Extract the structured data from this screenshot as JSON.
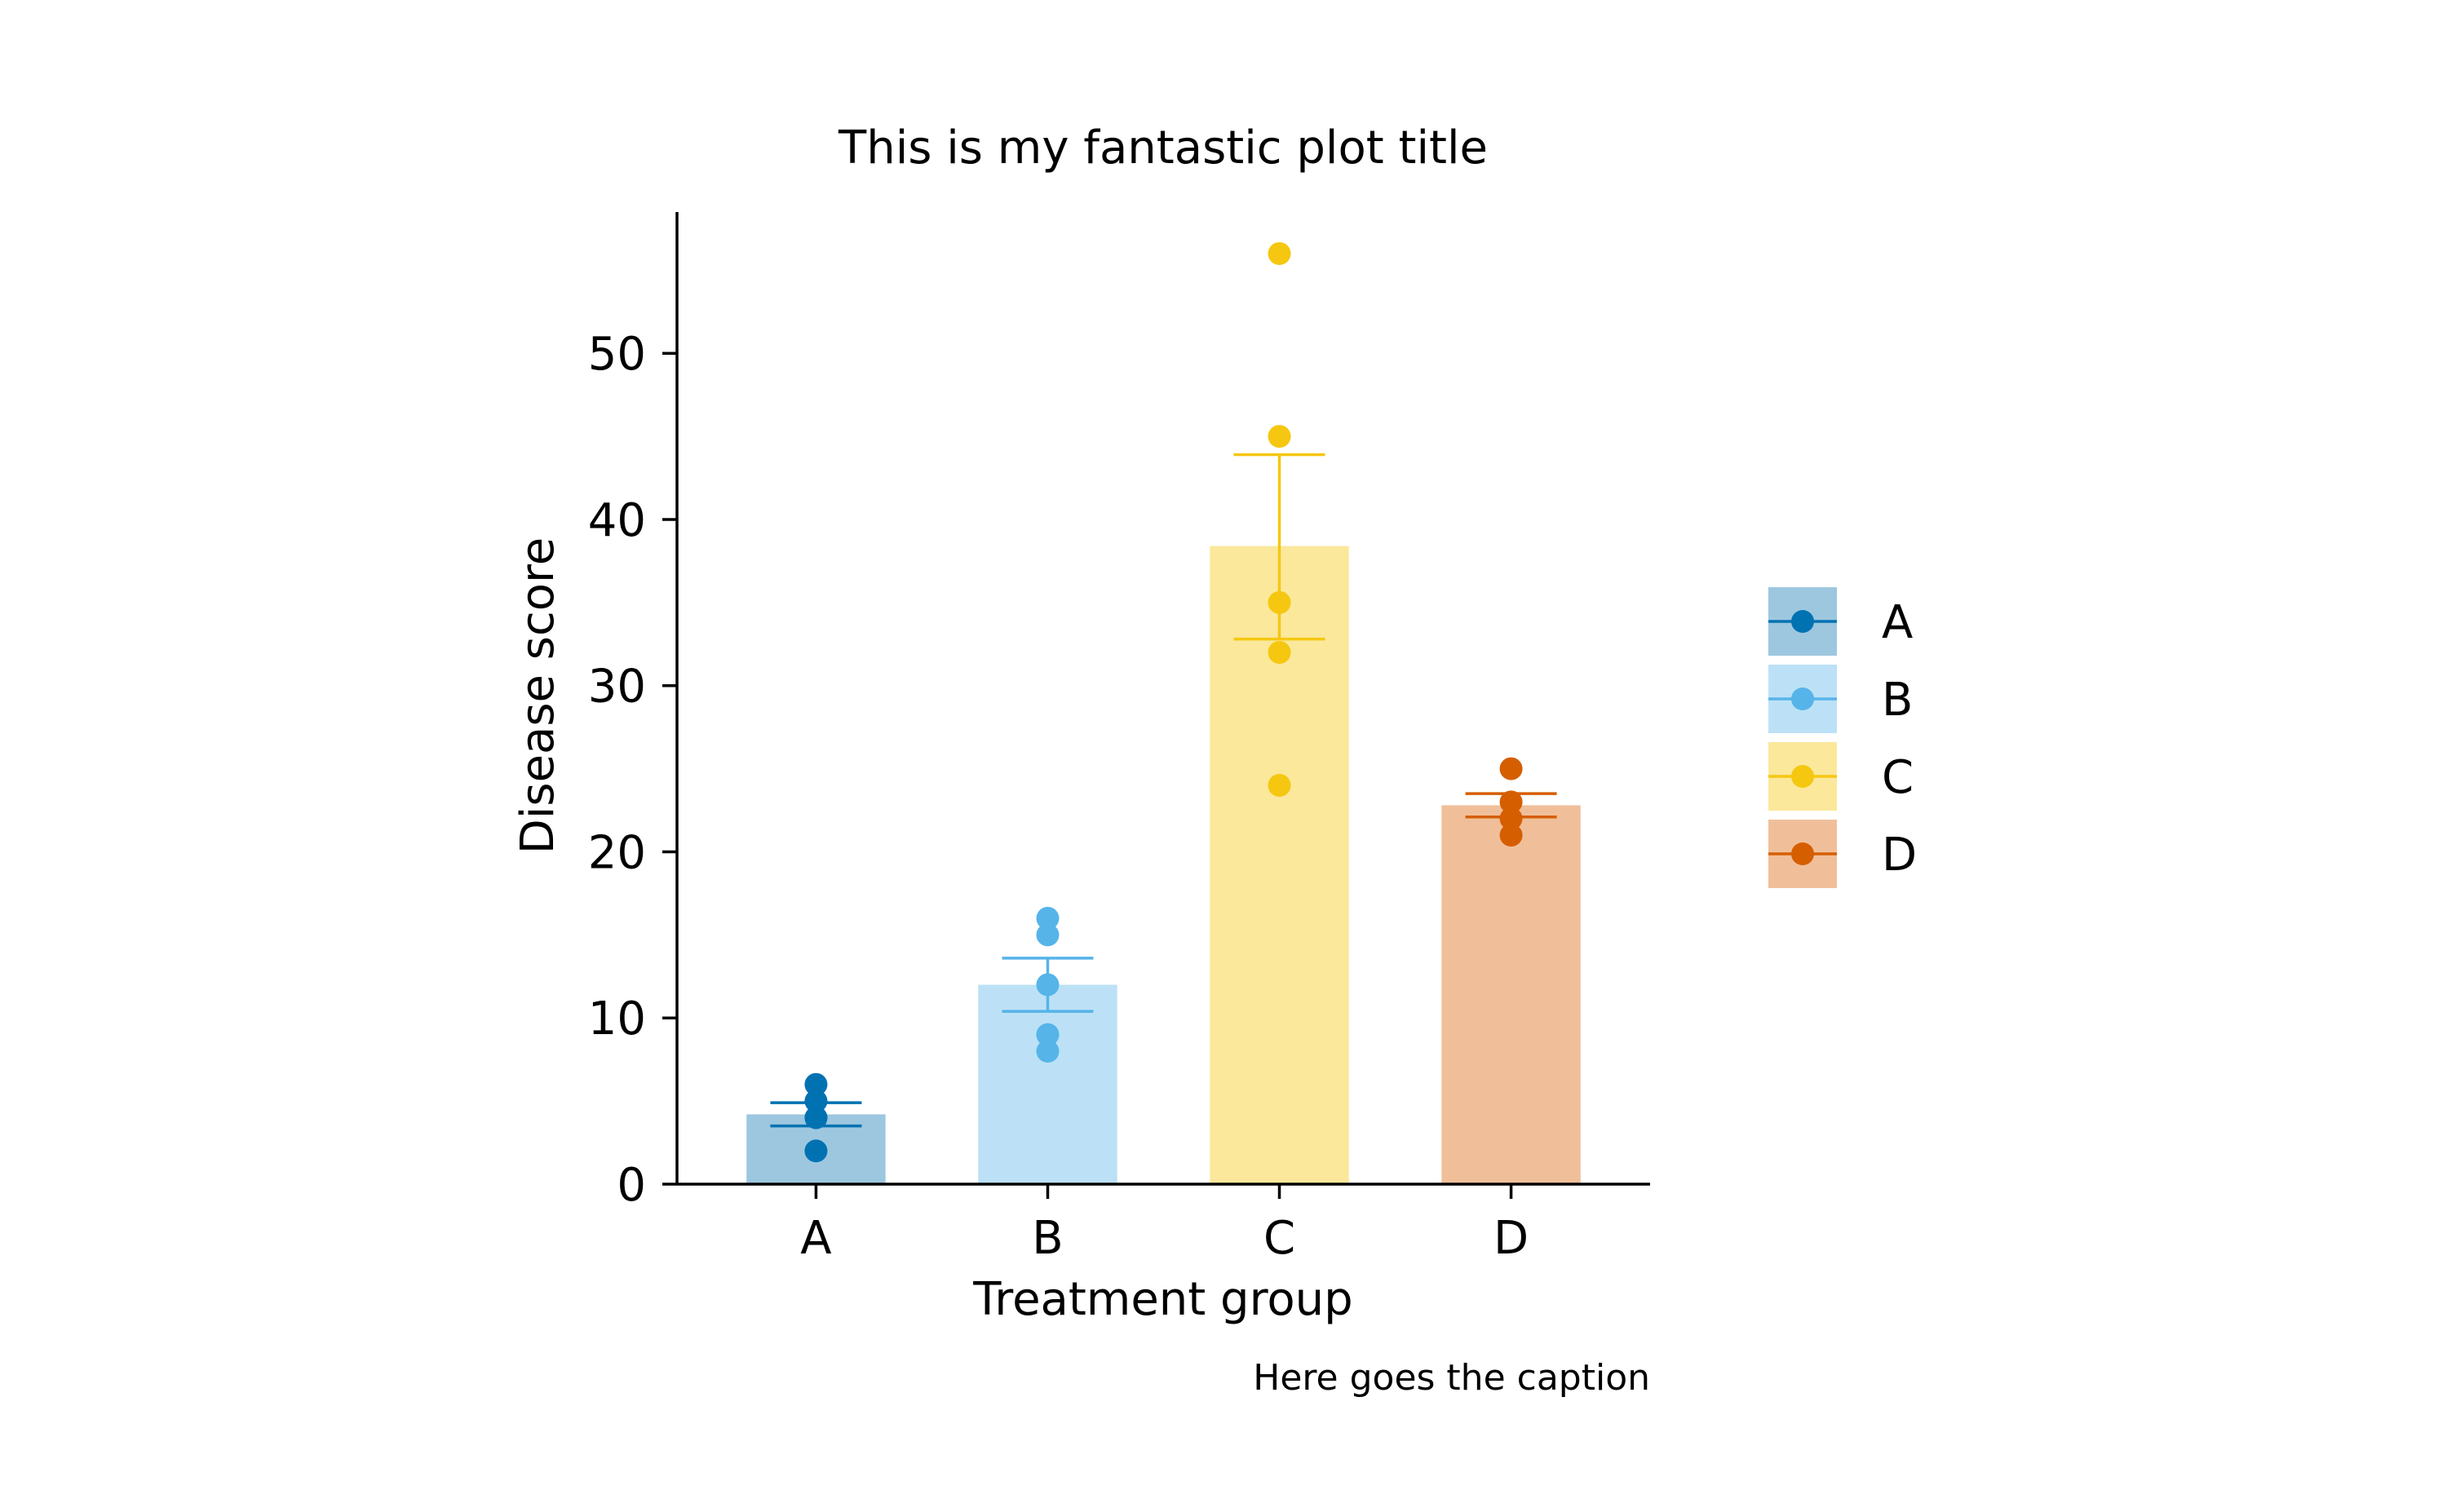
{
  "chart_data": {
    "type": "bar",
    "title": "This is my fantastic plot title",
    "xlabel": "Treatment group",
    "ylabel": "Disease score",
    "caption": "Here goes the caption",
    "ylim": [
      0,
      58.5
    ],
    "yticks": [
      0,
      10,
      20,
      30,
      40,
      50
    ],
    "grid": false,
    "legend_position": "right",
    "categories": [
      "A",
      "B",
      "C",
      "D"
    ],
    "values": [
      4.2,
      12.0,
      38.4,
      22.8
    ],
    "error_bars": [
      {
        "low": 3.5,
        "high": 4.9
      },
      {
        "low": 10.4,
        "high": 13.6
      },
      {
        "low": 32.8,
        "high": 43.9
      },
      {
        "low": 22.1,
        "high": 23.5
      }
    ],
    "points": [
      [
        2,
        4,
        4,
        5,
        6
      ],
      [
        8,
        9,
        12,
        15,
        16
      ],
      [
        24,
        32,
        35,
        45,
        56
      ],
      [
        21,
        22,
        23,
        25
      ]
    ],
    "colors": {
      "point": [
        "#0072b2",
        "#56b4e9",
        "#f5c710",
        "#d55e00"
      ],
      "bar": [
        "#9dc7df",
        "#bce1f6",
        "#fbe89b",
        "#f0bf9a"
      ]
    },
    "legend": [
      "A",
      "B",
      "C",
      "D"
    ]
  }
}
